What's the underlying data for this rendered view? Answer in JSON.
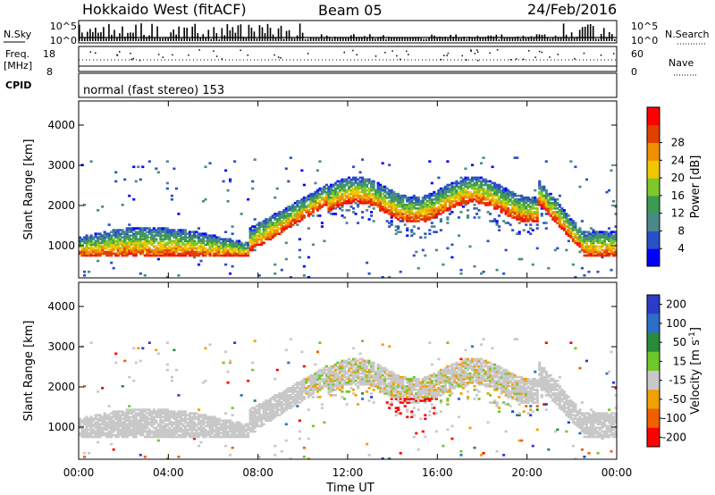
{
  "header": {
    "station": "Hokkaido West (fitACF)",
    "beam": "Beam 05",
    "date": "24/Feb/2016"
  },
  "noise_panel": {
    "left_label": "N.Sky",
    "right_label": "N.Search",
    "left_ticks": [
      "10^5",
      "10^0"
    ],
    "right_ticks": [
      "10^5",
      "10^0"
    ]
  },
  "freq_panel": {
    "left_label_1": "Freq.",
    "left_label_2": "[MHz]",
    "right_label": "Nave",
    "left_ticks": [
      "18",
      "8"
    ],
    "right_ticks": [
      "60",
      "0"
    ],
    "cpid_label": "CPID"
  },
  "cpid_text": "normal (fast stereo) 153",
  "chart_data": [
    {
      "type": "heatmap",
      "title": "Power",
      "xlabel": "Time UT",
      "ylabel": "Slant Range [km]",
      "x_ticks": [
        "00:00",
        "04:00",
        "08:00",
        "12:00",
        "16:00",
        "20:00",
        "00:00"
      ],
      "xlim": [
        0,
        24
      ],
      "y_ticks": [
        "1000",
        "2000",
        "3000",
        "4000"
      ],
      "ylim": [
        200,
        4600
      ],
      "colorbar": {
        "label": "Power [dB]",
        "ticks": [
          "4",
          "8",
          "12",
          "16",
          "20",
          "24",
          "28"
        ],
        "range": [
          0,
          30
        ]
      }
    },
    {
      "type": "heatmap",
      "title": "Velocity",
      "xlabel": "Time UT",
      "ylabel": "Slant Range [km]",
      "x_ticks": [
        "00:00",
        "04:00",
        "08:00",
        "12:00",
        "16:00",
        "20:00",
        "00:00"
      ],
      "xlim": [
        0,
        24
      ],
      "y_ticks": [
        "1000",
        "2000",
        "3000",
        "4000"
      ],
      "ylim": [
        200,
        4600
      ],
      "colorbar": {
        "label": "Velocity [m s",
        "label_sup": "-1",
        "label_end": "]",
        "ticks": [
          "200",
          "100",
          "50",
          "15",
          "-15",
          "-50",
          "-100",
          "-200"
        ]
      }
    }
  ],
  "colors": {
    "power": [
      "#0000ff",
      "#2a50c8",
      "#4a8a8a",
      "#3c9a52",
      "#7ec82a",
      "#f0c800",
      "#f09000",
      "#e04000",
      "#ff0000"
    ],
    "velocity": [
      "#2a3cc8",
      "#2a6ec8",
      "#2a8a3c",
      "#6ec82a",
      "#c8c8c8",
      "#f0a000",
      "#f06000",
      "#ff0000"
    ]
  }
}
